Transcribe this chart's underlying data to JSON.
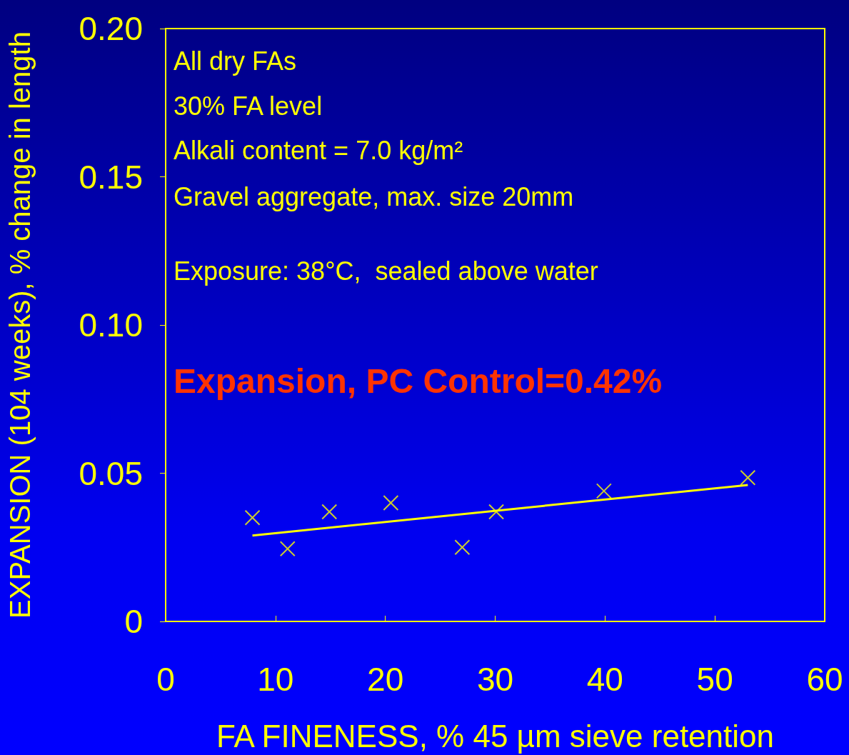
{
  "chart_data": {
    "type": "scatter",
    "xlabel": "FA FINENESS, % 45 µm sieve retention",
    "ylabel": "EXPANSION (104 weeks), % change in length",
    "annotations": [
      "All dry FAs",
      "30% FA level",
      "Alkali content = 7.0 kg/m²",
      "Gravel aggregate, max. size 20mm",
      "Exposure: 38°C,  sealed above water",
      "Expansion, PC Control=0.42%"
    ],
    "series": [
      {
        "color": "#ffff00",
        "marker": "cross",
        "x": [
          7.9,
          11.1,
          14.9,
          20.5,
          27.0,
          30.1,
          39.9,
          53.0
        ],
        "values": [
          0.035,
          0.0245,
          0.037,
          0.04,
          0.025,
          0.037,
          0.044,
          0.0485
        ]
      },
      {
        "type": "line",
        "color": "#ffff00",
        "marker": "none",
        "line_style": "solid",
        "x": [
          7.9,
          53.0
        ],
        "values": [
          0.029,
          0.046
        ]
      }
    ],
    "xlim": [
      0,
      60
    ],
    "xticks": [
      0,
      10,
      20,
      30,
      40,
      50,
      60
    ],
    "ylim": [
      0,
      0.2
    ],
    "yticks": [
      0,
      0.05,
      {
        "value": 0.1,
        "label": "0.10"
      },
      0.15,
      {
        "value": 0.2,
        "label": "0.20"
      }
    ],
    "grid": false
  }
}
